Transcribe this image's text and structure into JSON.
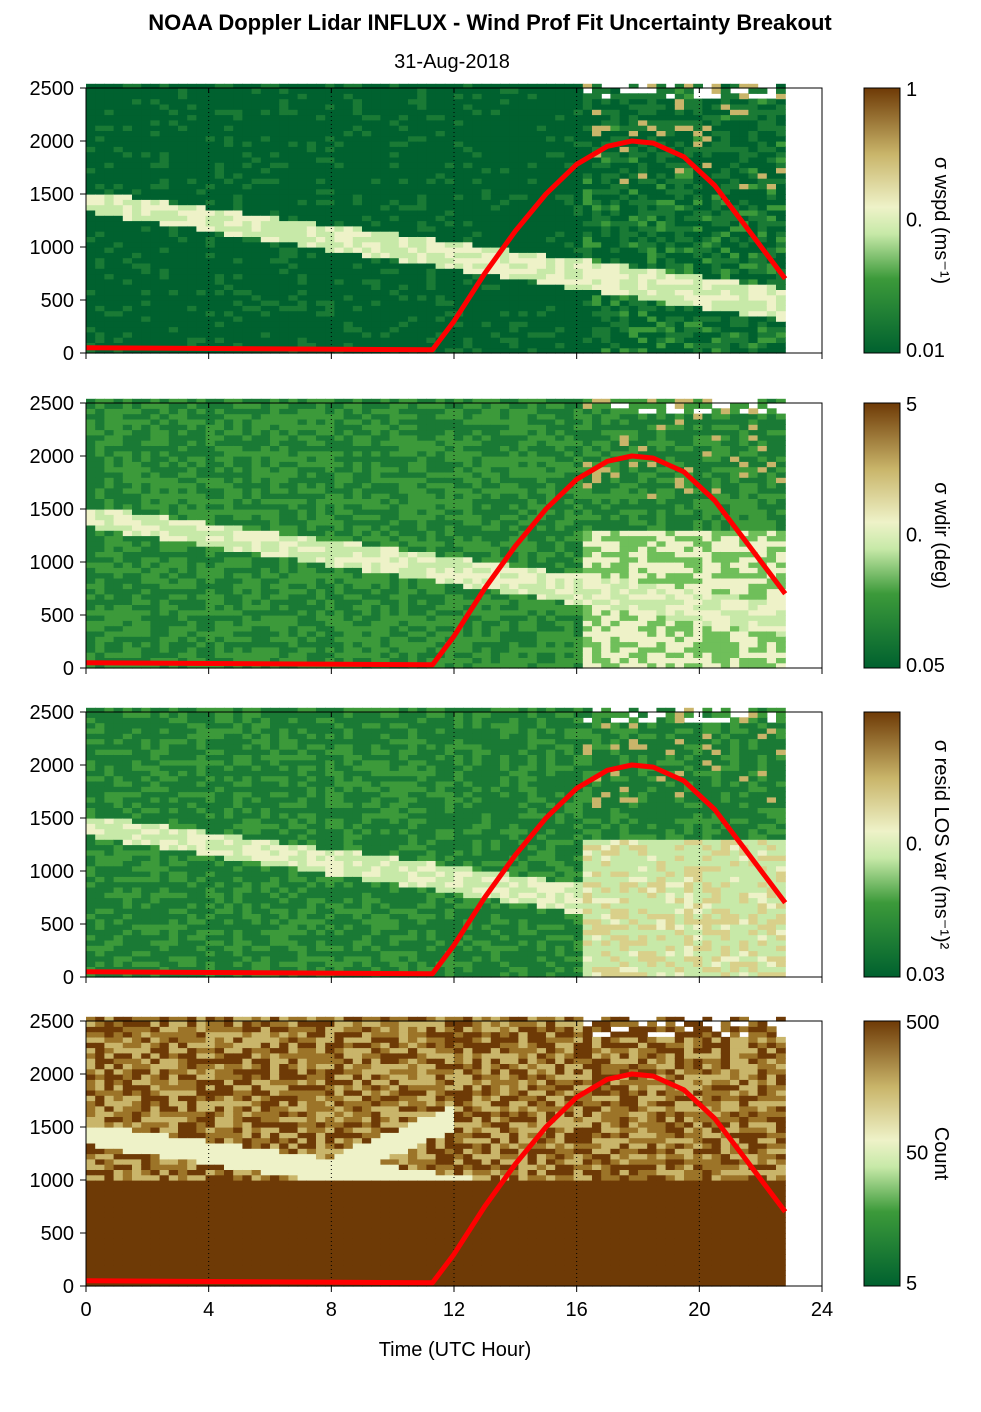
{
  "title": "NOAA Doppler Lidar INFLUX - Wind Prof Fit Uncertainty Breakout",
  "subtitle": "31-Aug-2018",
  "xlabel": "Time (UTC Hour)",
  "colors": {
    "dark_green": "#00612f",
    "mid_green": "#3c9a3a",
    "light_green": "#c7e9a8",
    "pale": "#eef2c8",
    "tan": "#c9b56a",
    "brown": "#6e3a06",
    "sun_curve": "#ff0000",
    "nodata": "#ffffff"
  },
  "chart_data": [
    {
      "type": "heatmap",
      "name": "panel-wspd",
      "colorbar_label": "σ wspd (ms⁻¹)",
      "colorbar_ticks": [
        "1",
        "0.",
        "0.01"
      ],
      "x_ticks": [
        0,
        4,
        8,
        12,
        16,
        20,
        24
      ],
      "y_ticks": [
        0,
        500,
        1000,
        1500,
        2000,
        2500
      ],
      "xlim": [
        0,
        24
      ],
      "ylim": [
        0,
        2500
      ],
      "data_xrange": [
        0,
        22.8
      ],
      "solar_curve": {
        "x": [
          0,
          11.3,
          12,
          13,
          14,
          15,
          16,
          17,
          17.8,
          18.5,
          19.5,
          20.5,
          21.5,
          22.8
        ],
        "y": [
          50,
          30,
          300,
          750,
          1150,
          1500,
          1780,
          1950,
          2000,
          1980,
          1850,
          1580,
          1200,
          700
        ]
      }
    },
    {
      "type": "heatmap",
      "name": "panel-wdir",
      "colorbar_label": "σ wdir (deg)",
      "colorbar_ticks": [
        "5",
        "0.",
        "0.05"
      ],
      "x_ticks": [
        0,
        4,
        8,
        12,
        16,
        20,
        24
      ],
      "y_ticks": [
        0,
        500,
        1000,
        1500,
        2000,
        2500
      ],
      "xlim": [
        0,
        24
      ],
      "ylim": [
        0,
        2500
      ],
      "data_xrange": [
        0,
        22.8
      ],
      "solar_curve": {
        "x": [
          0,
          11.3,
          12,
          13,
          14,
          15,
          16,
          17,
          17.8,
          18.5,
          19.5,
          20.5,
          21.5,
          22.8
        ],
        "y": [
          50,
          30,
          300,
          750,
          1150,
          1500,
          1780,
          1950,
          2000,
          1980,
          1850,
          1580,
          1200,
          700
        ]
      }
    },
    {
      "type": "heatmap",
      "name": "panel-resid",
      "colorbar_label": "σ resid LOS var (ms⁻¹)²",
      "colorbar_ticks": [
        "",
        "0.",
        "0.03"
      ],
      "x_ticks": [
        0,
        4,
        8,
        12,
        16,
        20,
        24
      ],
      "y_ticks": [
        0,
        500,
        1000,
        1500,
        2000,
        2500
      ],
      "xlim": [
        0,
        24
      ],
      "ylim": [
        0,
        2500
      ],
      "data_xrange": [
        0,
        22.8
      ],
      "solar_curve": {
        "x": [
          0,
          11.3,
          12,
          13,
          14,
          15,
          16,
          17,
          17.8,
          18.5,
          19.5,
          20.5,
          21.5,
          22.8
        ],
        "y": [
          50,
          30,
          300,
          750,
          1150,
          1500,
          1780,
          1950,
          2000,
          1980,
          1850,
          1580,
          1200,
          700
        ]
      }
    },
    {
      "type": "heatmap",
      "name": "panel-count",
      "colorbar_label": "Count",
      "colorbar_ticks": [
        "500",
        "50",
        "5"
      ],
      "x_ticks": [
        0,
        4,
        8,
        12,
        16,
        20,
        24
      ],
      "y_ticks": [
        0,
        500,
        1000,
        1500,
        2000,
        2500
      ],
      "xlim": [
        0,
        24
      ],
      "ylim": [
        0,
        2500
      ],
      "data_xrange": [
        0,
        22.8
      ],
      "solar_curve": {
        "x": [
          0,
          11.3,
          12,
          13,
          14,
          15,
          16,
          17,
          17.8,
          18.5,
          19.5,
          20.5,
          21.5,
          22.8
        ],
        "y": [
          50,
          30,
          300,
          750,
          1150,
          1500,
          1780,
          1950,
          2000,
          1980,
          1850,
          1580,
          1200,
          700
        ]
      }
    }
  ]
}
